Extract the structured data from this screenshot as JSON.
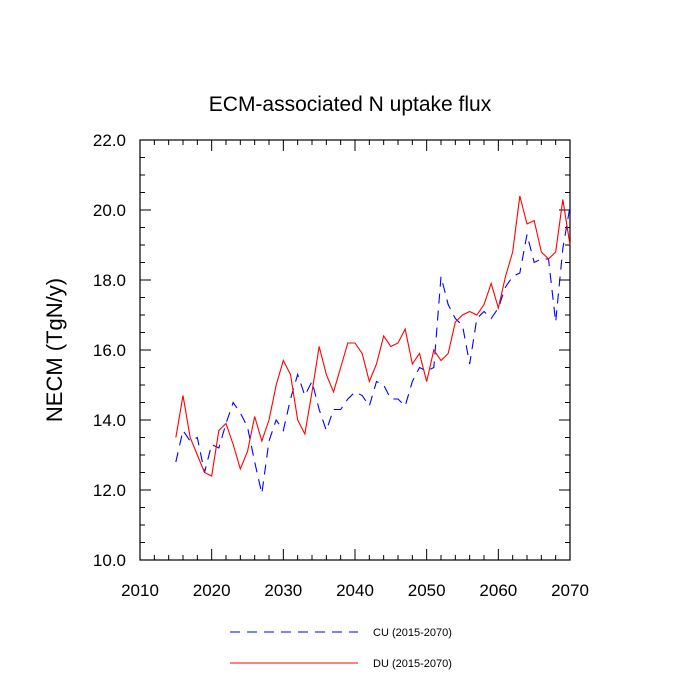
{
  "chart_data": {
    "type": "line",
    "title": "ECM-associated N uptake flux",
    "xlabel": "",
    "ylabel": "NECM  (TgN/y)",
    "xlim": [
      2010,
      2070
    ],
    "ylim": [
      10.0,
      22.0
    ],
    "x_ticks": [
      2010,
      2020,
      2030,
      2040,
      2050,
      2060,
      2070
    ],
    "y_ticks": [
      "10.0",
      "12.0",
      "14.0",
      "16.0",
      "18.0",
      "20.0",
      "22.0"
    ],
    "x": [
      2015,
      2016,
      2017,
      2018,
      2019,
      2020,
      2021,
      2022,
      2023,
      2024,
      2025,
      2026,
      2027,
      2028,
      2029,
      2030,
      2031,
      2032,
      2033,
      2034,
      2035,
      2036,
      2037,
      2038,
      2039,
      2040,
      2041,
      2042,
      2043,
      2044,
      2045,
      2046,
      2047,
      2048,
      2049,
      2050,
      2051,
      2052,
      2053,
      2054,
      2055,
      2056,
      2057,
      2058,
      2059,
      2060,
      2061,
      2062,
      2063,
      2064,
      2065,
      2066,
      2067,
      2068,
      2069,
      2070
    ],
    "series": [
      {
        "name": "CU (2015-2070)",
        "color": "#0000ff",
        "style": "dashed",
        "values": [
          12.8,
          13.7,
          13.4,
          13.5,
          12.5,
          13.3,
          13.2,
          13.9,
          14.5,
          14.2,
          13.8,
          12.8,
          11.9,
          13.4,
          14.0,
          13.7,
          14.6,
          15.3,
          14.7,
          15.1,
          14.3,
          13.7,
          14.3,
          14.3,
          14.6,
          14.8,
          14.7,
          14.4,
          15.1,
          15.0,
          14.6,
          14.6,
          14.4,
          15.1,
          15.5,
          15.4,
          15.5,
          18.1,
          17.3,
          16.9,
          16.7,
          15.6,
          16.9,
          17.1,
          16.9,
          17.2,
          17.8,
          18.1,
          18.2,
          19.3,
          18.5,
          18.6,
          18.6,
          16.8,
          18.9,
          20.1
        ]
      },
      {
        "name": "DU (2015-2070)",
        "color": "#ff0000",
        "style": "solid",
        "values": [
          13.5,
          14.7,
          13.5,
          13.0,
          12.5,
          12.4,
          13.7,
          13.9,
          13.3,
          12.6,
          13.1,
          14.1,
          13.4,
          14.0,
          15.0,
          15.7,
          15.3,
          14.0,
          13.6,
          14.8,
          16.1,
          15.3,
          14.8,
          15.5,
          16.2,
          16.2,
          15.9,
          15.1,
          15.6,
          16.4,
          16.1,
          16.2,
          16.6,
          15.6,
          15.9,
          15.1,
          16.0,
          15.7,
          15.9,
          16.8,
          17.0,
          17.1,
          17.0,
          17.3,
          17.9,
          17.2,
          18.1,
          18.8,
          20.4,
          19.6,
          19.7,
          18.8,
          18.6,
          18.8,
          20.3,
          19.0
        ]
      }
    ],
    "legend_position": "bottom-center"
  }
}
